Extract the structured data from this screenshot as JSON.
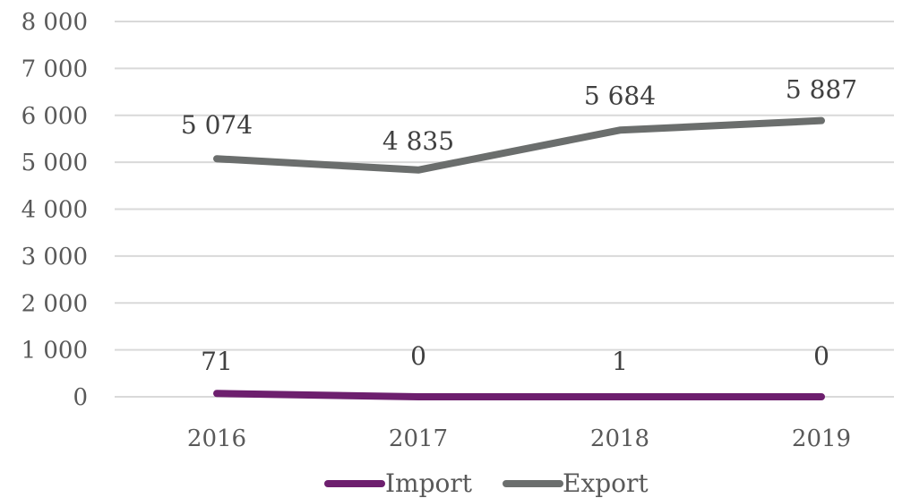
{
  "chart_data": {
    "type": "line",
    "categories": [
      "2016",
      "2017",
      "2018",
      "2019"
    ],
    "series": [
      {
        "name": "Import",
        "values": [
          71,
          0,
          1,
          0
        ],
        "labels": [
          "71",
          "0",
          "1",
          "0"
        ],
        "color": "#6d1f6e"
      },
      {
        "name": "Export",
        "values": [
          5074,
          4835,
          5684,
          5887
        ],
        "labels": [
          "5 074",
          "4 835",
          "5 684",
          "5 887"
        ],
        "color": "#6b6e6d"
      }
    ],
    "y_ticks": [
      {
        "value": 0,
        "label": "0"
      },
      {
        "value": 1000,
        "label": "1 000"
      },
      {
        "value": 2000,
        "label": "2 000"
      },
      {
        "value": 3000,
        "label": "3 000"
      },
      {
        "value": 4000,
        "label": "4 000"
      },
      {
        "value": 5000,
        "label": "5 000"
      },
      {
        "value": 6000,
        "label": "6 000"
      },
      {
        "value": 7000,
        "label": "7 000"
      },
      {
        "value": 8000,
        "label": "8 000"
      }
    ],
    "ylim": [
      0,
      8000
    ],
    "grid": true,
    "legend": "bottom",
    "title": "",
    "xlabel": "",
    "ylabel": ""
  }
}
